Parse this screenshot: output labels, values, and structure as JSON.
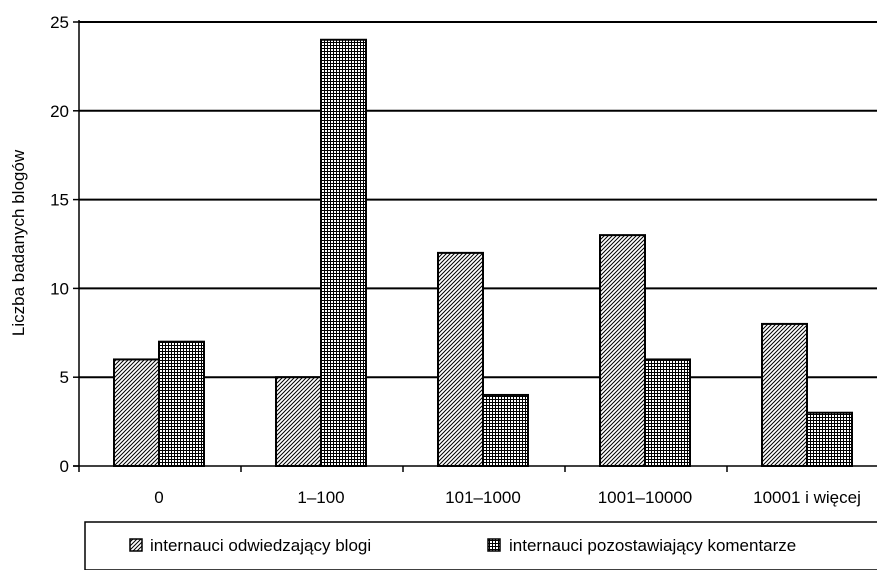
{
  "chart_data": {
    "type": "bar",
    "categories": [
      "0",
      "1–100",
      "101–1000",
      "1001–10000",
      "10001 i więcej"
    ],
    "series": [
      {
        "name": "internauci odwiedzający blogi",
        "values": [
          6,
          5,
          12,
          13,
          8
        ],
        "pattern": "diagonal-hatch"
      },
      {
        "name": "internauci pozostawiający komentarze",
        "values": [
          7,
          24,
          4,
          6,
          3
        ],
        "pattern": "grid-hatch"
      }
    ],
    "xlabel": "",
    "ylabel": "Liczba badanych blogów",
    "ylim": [
      0,
      25
    ],
    "yticks": [
      0,
      5,
      10,
      15,
      20,
      25
    ],
    "grid": true,
    "legend_position": "bottom"
  }
}
